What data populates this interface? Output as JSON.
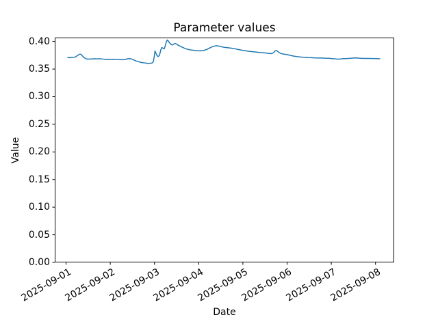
{
  "figure": {
    "title": "Parameter values",
    "xlabel": "Date",
    "ylabel": "Value",
    "background_color": "#ffffff",
    "line_color": "#1f77b4",
    "axis_color": "#000000",
    "tick_label_color": "#000000"
  },
  "chart_data": {
    "type": "line",
    "title": "Parameter values",
    "xlabel": "Date",
    "ylabel": "Value",
    "grid": false,
    "legend_position": "none",
    "x_tick_labels": [
      "2025-09-01",
      "2025-09-02",
      "2025-09-03",
      "2025-09-04",
      "2025-09-05",
      "2025-09-06",
      "2025-09-07",
      "2025-09-08"
    ],
    "x_tick_days": [
      0,
      1,
      2,
      3,
      4,
      5,
      6,
      7
    ],
    "x_tick_rotation_deg": 30,
    "y_tick_labels": [
      "0.00",
      "0.05",
      "0.10",
      "0.15",
      "0.20",
      "0.25",
      "0.30",
      "0.35",
      "0.40"
    ],
    "y_tick_values": [
      0.0,
      0.05,
      0.1,
      0.15,
      0.2,
      0.25,
      0.3,
      0.35,
      0.4
    ],
    "ylim": [
      0,
      0.407
    ],
    "xlim_days": [
      -0.2554,
      7.4226
    ],
    "series": [
      {
        "name": "parameter-values",
        "color": "#1f77b4",
        "points_days_value": [
          [
            0.039,
            0.3708
          ],
          [
            0.101,
            0.3706
          ],
          [
            0.163,
            0.3712
          ],
          [
            0.209,
            0.3718
          ],
          [
            0.255,
            0.3743
          ],
          [
            0.302,
            0.3767
          ],
          [
            0.333,
            0.377
          ],
          [
            0.364,
            0.3743
          ],
          [
            0.41,
            0.3706
          ],
          [
            0.457,
            0.3685
          ],
          [
            0.519,
            0.3681
          ],
          [
            0.581,
            0.3684
          ],
          [
            0.642,
            0.3687
          ],
          [
            0.704,
            0.3685
          ],
          [
            0.766,
            0.3687
          ],
          [
            0.828,
            0.3681
          ],
          [
            0.89,
            0.3675
          ],
          [
            0.952,
            0.3677
          ],
          [
            1.014,
            0.3676
          ],
          [
            1.076,
            0.3677
          ],
          [
            1.138,
            0.3672
          ],
          [
            1.2,
            0.3671
          ],
          [
            1.262,
            0.3669
          ],
          [
            1.323,
            0.3671
          ],
          [
            1.385,
            0.3685
          ],
          [
            1.432,
            0.369
          ],
          [
            1.478,
            0.3684
          ],
          [
            1.525,
            0.3669
          ],
          [
            1.571,
            0.365
          ],
          [
            1.618,
            0.3638
          ],
          [
            1.664,
            0.3628
          ],
          [
            1.71,
            0.3619
          ],
          [
            1.757,
            0.3613
          ],
          [
            1.803,
            0.3609
          ],
          [
            1.85,
            0.3603
          ],
          [
            1.896,
            0.3603
          ],
          [
            1.943,
            0.3609
          ],
          [
            1.974,
            0.3631
          ],
          [
            1.997,
            0.3736
          ],
          [
            2.012,
            0.3829
          ],
          [
            2.028,
            0.3798
          ],
          [
            2.051,
            0.3755
          ],
          [
            2.082,
            0.3724
          ],
          [
            2.113,
            0.3749
          ],
          [
            2.144,
            0.3848
          ],
          [
            2.167,
            0.3891
          ],
          [
            2.19,
            0.3879
          ],
          [
            2.221,
            0.3866
          ],
          [
            2.245,
            0.3922
          ],
          [
            2.268,
            0.3991
          ],
          [
            2.291,
            0.4027
          ],
          [
            2.314,
            0.4009
          ],
          [
            2.337,
            0.3978
          ],
          [
            2.361,
            0.3959
          ],
          [
            2.384,
            0.3941
          ],
          [
            2.407,
            0.3937
          ],
          [
            2.438,
            0.3953
          ],
          [
            2.469,
            0.3962
          ],
          [
            2.5,
            0.3953
          ],
          [
            2.531,
            0.3934
          ],
          [
            2.577,
            0.3916
          ],
          [
            2.624,
            0.3897
          ],
          [
            2.67,
            0.3881
          ],
          [
            2.717,
            0.3866
          ],
          [
            2.763,
            0.3856
          ],
          [
            2.809,
            0.3848
          ],
          [
            2.871,
            0.3841
          ],
          [
            2.933,
            0.3835
          ],
          [
            2.995,
            0.3831
          ],
          [
            3.057,
            0.3831
          ],
          [
            3.119,
            0.3838
          ],
          [
            3.181,
            0.3854
          ],
          [
            3.243,
            0.3879
          ],
          [
            3.305,
            0.3903
          ],
          [
            3.367,
            0.3918
          ],
          [
            3.413,
            0.3922
          ],
          [
            3.46,
            0.3916
          ],
          [
            3.522,
            0.3903
          ],
          [
            3.583,
            0.3893
          ],
          [
            3.645,
            0.3887
          ],
          [
            3.707,
            0.3881
          ],
          [
            3.769,
            0.3875
          ],
          [
            3.847,
            0.3862
          ],
          [
            3.924,
            0.385
          ],
          [
            4.001,
            0.3838
          ],
          [
            4.079,
            0.3829
          ],
          [
            4.156,
            0.3819
          ],
          [
            4.234,
            0.3813
          ],
          [
            4.311,
            0.3807
          ],
          [
            4.389,
            0.3798
          ],
          [
            4.466,
            0.3795
          ],
          [
            4.543,
            0.3788
          ],
          [
            4.605,
            0.3783
          ],
          [
            4.652,
            0.378
          ],
          [
            4.698,
            0.3798
          ],
          [
            4.729,
            0.3829
          ],
          [
            4.76,
            0.3835
          ],
          [
            4.791,
            0.3817
          ],
          [
            4.822,
            0.3798
          ],
          [
            4.868,
            0.378
          ],
          [
            4.93,
            0.377
          ],
          [
            5.008,
            0.3761
          ],
          [
            5.085,
            0.3745
          ],
          [
            5.163,
            0.3733
          ],
          [
            5.24,
            0.3724
          ],
          [
            5.317,
            0.3718
          ],
          [
            5.395,
            0.3712
          ],
          [
            5.472,
            0.3708
          ],
          [
            5.55,
            0.3706
          ],
          [
            5.627,
            0.3702
          ],
          [
            5.704,
            0.37
          ],
          [
            5.782,
            0.37
          ],
          [
            5.859,
            0.3697
          ],
          [
            5.937,
            0.3696
          ],
          [
            6.014,
            0.369
          ],
          [
            6.091,
            0.3685
          ],
          [
            6.153,
            0.3679
          ],
          [
            6.215,
            0.3684
          ],
          [
            6.277,
            0.369
          ],
          [
            6.339,
            0.369
          ],
          [
            6.401,
            0.3693
          ],
          [
            6.463,
            0.3697
          ],
          [
            6.525,
            0.3702
          ],
          [
            6.587,
            0.37
          ],
          [
            6.649,
            0.3696
          ],
          [
            6.71,
            0.3693
          ],
          [
            6.772,
            0.3693
          ],
          [
            6.834,
            0.3693
          ],
          [
            6.896,
            0.3691
          ],
          [
            6.958,
            0.3691
          ],
          [
            7.02,
            0.369
          ],
          [
            7.098,
            0.3687
          ]
        ]
      }
    ]
  }
}
